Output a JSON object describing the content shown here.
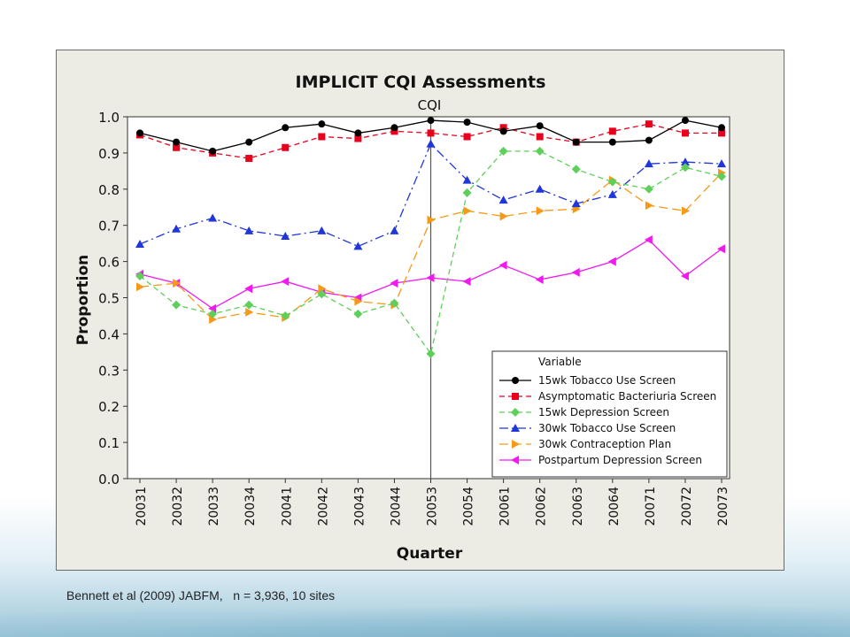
{
  "caption": "Bennett et al (2009) JABFM,   n = 3,936, 10 sites",
  "chart_data": {
    "type": "line",
    "title": "IMPLICIT CQI Assessments",
    "panel_label": "CQI",
    "xlabel": "Quarter",
    "ylabel": "Proportion",
    "ylim": [
      0,
      1.0
    ],
    "yticks": [
      "0.0",
      "0.1",
      "0.2",
      "0.3",
      "0.4",
      "0.5",
      "0.6",
      "0.7",
      "0.8",
      "0.9",
      "1.0"
    ],
    "categories": [
      "20031",
      "20032",
      "20033",
      "20034",
      "20041",
      "20042",
      "20043",
      "20044",
      "20053",
      "20054",
      "20061",
      "20062",
      "20063",
      "20064",
      "20071",
      "20072",
      "20073"
    ],
    "reference_line_at": "20053",
    "grid": false,
    "legend": {
      "title": "Variable",
      "position": "bottom-right"
    },
    "series": [
      {
        "name": "15wk Tobacco Use Screen",
        "color": "#000000",
        "marker": "circle",
        "dash": "solid",
        "values": [
          0.955,
          0.93,
          0.905,
          0.93,
          0.97,
          0.98,
          0.955,
          0.97,
          0.99,
          0.985,
          0.96,
          0.975,
          0.93,
          0.93,
          0.935,
          0.99,
          0.97
        ]
      },
      {
        "name": "Asymptomatic Bacteriuria Screen",
        "color": "#e8001c",
        "marker": "square",
        "dash": "dash",
        "values": [
          0.95,
          0.915,
          0.9,
          0.885,
          0.915,
          0.945,
          0.94,
          0.96,
          0.955,
          0.945,
          0.97,
          0.945,
          0.93,
          0.96,
          0.98,
          0.955,
          0.955
        ]
      },
      {
        "name": "15wk Depression Screen",
        "color": "#5ecf5a",
        "marker": "diamond",
        "dash": "dash",
        "values": [
          0.56,
          0.48,
          0.455,
          0.48,
          0.45,
          0.51,
          0.455,
          0.485,
          0.345,
          0.79,
          0.905,
          0.905,
          0.855,
          0.82,
          0.8,
          0.86,
          0.835
        ]
      },
      {
        "name": "30wk Tobacco Use Screen",
        "color": "#1f36d8",
        "marker": "triangle-up",
        "dash": "dashdot",
        "values": [
          0.648,
          0.69,
          0.72,
          0.685,
          0.67,
          0.685,
          0.642,
          0.685,
          0.925,
          0.825,
          0.77,
          0.8,
          0.76,
          0.785,
          0.87,
          0.875,
          0.87
        ]
      },
      {
        "name": "30wk Contraception Plan",
        "color": "#f59a18",
        "marker": "triangle-right",
        "dash": "longdash",
        "values": [
          0.53,
          0.54,
          0.44,
          0.46,
          0.445,
          0.525,
          0.49,
          0.48,
          0.715,
          0.74,
          0.725,
          0.74,
          0.745,
          0.825,
          0.755,
          0.74,
          0.845
        ]
      },
      {
        "name": "Postpartum Depression Screen",
        "color": "#f01af0",
        "marker": "triangle-left",
        "dash": "solid",
        "values": [
          0.565,
          0.54,
          0.47,
          0.525,
          0.545,
          0.515,
          0.5,
          0.54,
          0.555,
          0.545,
          0.59,
          0.55,
          0.57,
          0.6,
          0.66,
          0.56,
          0.635
        ]
      }
    ]
  }
}
